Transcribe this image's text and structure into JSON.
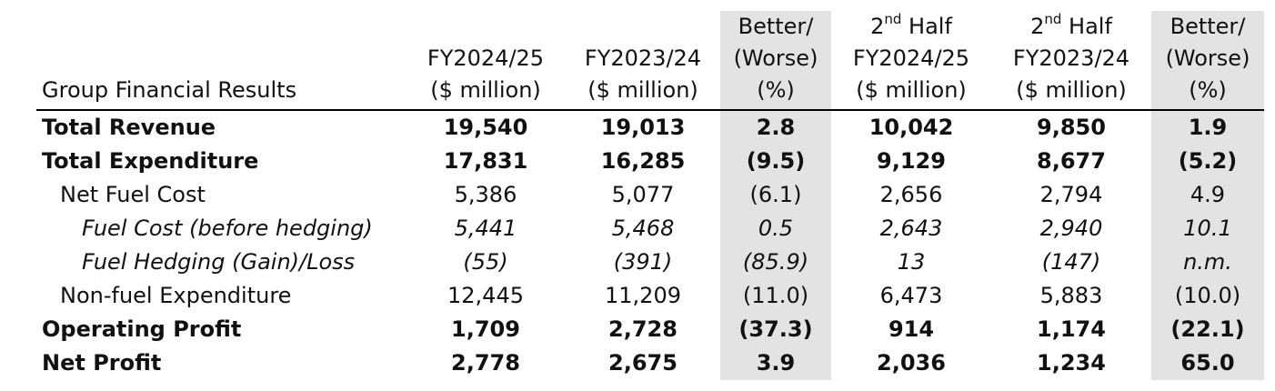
{
  "table": {
    "header": {
      "label": "Group Financial Results",
      "columns": [
        {
          "line1": "",
          "line2": "FY2024/25",
          "line3": "($ million)"
        },
        {
          "line1": "",
          "line2": "FY2023/24",
          "line3": "($ million)"
        },
        {
          "line1": "Better/",
          "line2": "(Worse)",
          "line3": "(%)"
        },
        {
          "line1_pre": "2",
          "line1_sup": "nd",
          "line1_post": " Half",
          "line2": "FY2024/25",
          "line3": "($ million)"
        },
        {
          "line1_pre": "2",
          "line1_sup": "nd",
          "line1_post": " Half",
          "line2": "FY2023/24",
          "line3": "($ million)"
        },
        {
          "line1": "Better/",
          "line2": "(Worse)",
          "line3": "(%)"
        }
      ]
    },
    "rows": [
      {
        "label": "Total Revenue",
        "values": [
          "19,540",
          "19,013",
          "2.8",
          "10,042",
          "9,850",
          "1.9"
        ]
      },
      {
        "label": "Total Expenditure",
        "values": [
          "17,831",
          "16,285",
          "(9.5)",
          "9,129",
          "8,677",
          "(5.2)"
        ]
      },
      {
        "label": "Net Fuel Cost",
        "values": [
          "5,386",
          "5,077",
          "(6.1)",
          "2,656",
          "2,794",
          "4.9"
        ]
      },
      {
        "label": "Fuel Cost (before hedging)",
        "values": [
          "5,441",
          "5,468",
          "0.5",
          "2,643",
          "2,940",
          "10.1"
        ]
      },
      {
        "label": "Fuel Hedging (Gain)/Loss",
        "values": [
          "(55)",
          "(391)",
          "(85.9)",
          "13",
          "(147)",
          "n.m."
        ]
      },
      {
        "label": "Non-fuel Expenditure",
        "values": [
          "12,445",
          "11,209",
          "(11.0)",
          "6,473",
          "5,883",
          "(10.0)"
        ]
      },
      {
        "label": "Operating Profit",
        "values": [
          "1,709",
          "2,728",
          "(37.3)",
          "914",
          "1,174",
          "(22.1)"
        ]
      },
      {
        "label": "Net Profit",
        "values": [
          "2,778",
          "2,675",
          "3.9",
          "2,036",
          "1,234",
          "65.0"
        ]
      }
    ]
  },
  "colors": {
    "shade": "#e3e3e3",
    "rule": "#000000"
  }
}
